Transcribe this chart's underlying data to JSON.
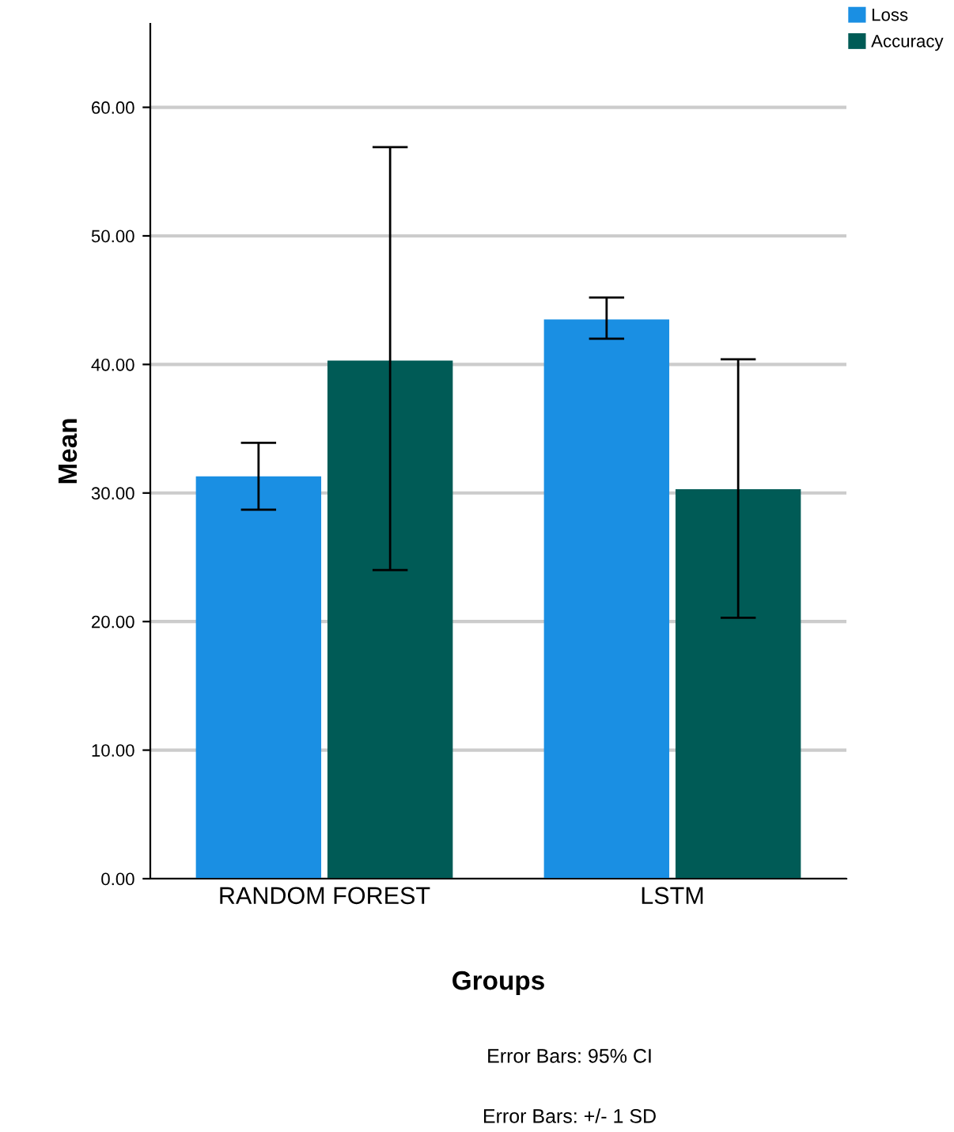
{
  "chart_data": {
    "type": "bar",
    "xlabel": "Groups",
    "ylabel": "Mean",
    "categories": [
      "RANDOM FOREST",
      "LSTM"
    ],
    "series": [
      {
        "name": "Loss",
        "color": "#1a8fe3",
        "values": [
          31.3,
          43.5
        ],
        "errors": [
          [
            28.7,
            33.9
          ],
          [
            42.0,
            45.2
          ]
        ]
      },
      {
        "name": "Accuracy",
        "color": "#005b56",
        "values": [
          40.3,
          30.3
        ],
        "errors": [
          [
            24.0,
            56.9
          ],
          [
            20.3,
            40.4
          ]
        ]
      }
    ],
    "ylim": [
      0,
      66.5
    ],
    "yticks": [
      {
        "value": 0,
        "label": "0.00"
      },
      {
        "value": 10,
        "label": "10.00"
      },
      {
        "value": 20,
        "label": "20.00"
      },
      {
        "value": 30,
        "label": "30.00"
      },
      {
        "value": 40,
        "label": "40.00"
      },
      {
        "value": 50,
        "label": "50.00"
      },
      {
        "value": 60,
        "label": "60.00"
      }
    ],
    "grid": "y",
    "legend": "top right",
    "annotations": [
      "Error Bars: 95% CI",
      "Error Bars: +/- 1 SD"
    ]
  }
}
